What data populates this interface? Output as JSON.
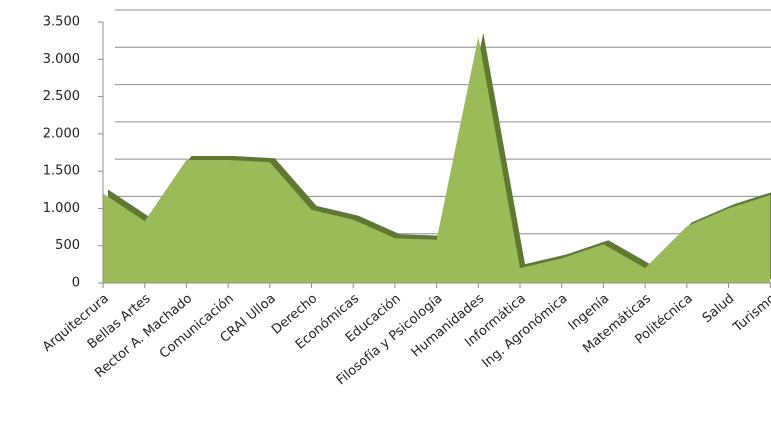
{
  "chart_data": {
    "type": "area",
    "categories": [
      "Arquitecrura",
      "Bellas Artes",
      "Rector A. Machado",
      "Comunicación",
      "CRAI Ulloa",
      "Derecho",
      "Económicas",
      "Educación",
      "Filosofía y Psicología",
      "Humanidades",
      "Informática",
      "Ing. Agronómica",
      "Ingenía",
      "Matemáticas",
      "Politécnica",
      "Salud",
      "Turismo"
    ],
    "values": [
      1200,
      830,
      1650,
      1650,
      1620,
      980,
      850,
      600,
      580,
      3300,
      200,
      330,
      520,
      200,
      760,
      1000,
      1180
    ],
    "color": "#9bbb59",
    "ylim": [
      0,
      3500
    ],
    "yticks": [
      0,
      500,
      {
        "value": 1000,
        "label": "1.000"
      },
      {
        "value": 1500,
        "label": "1.500"
      },
      {
        "value": 2000,
        "label": "2.000"
      },
      {
        "value": 2500,
        "label": "2.500"
      },
      {
        "value": 3000,
        "label": "3.000"
      },
      {
        "value": 3500,
        "label": "3.500"
      }
    ],
    "grid": true
  }
}
